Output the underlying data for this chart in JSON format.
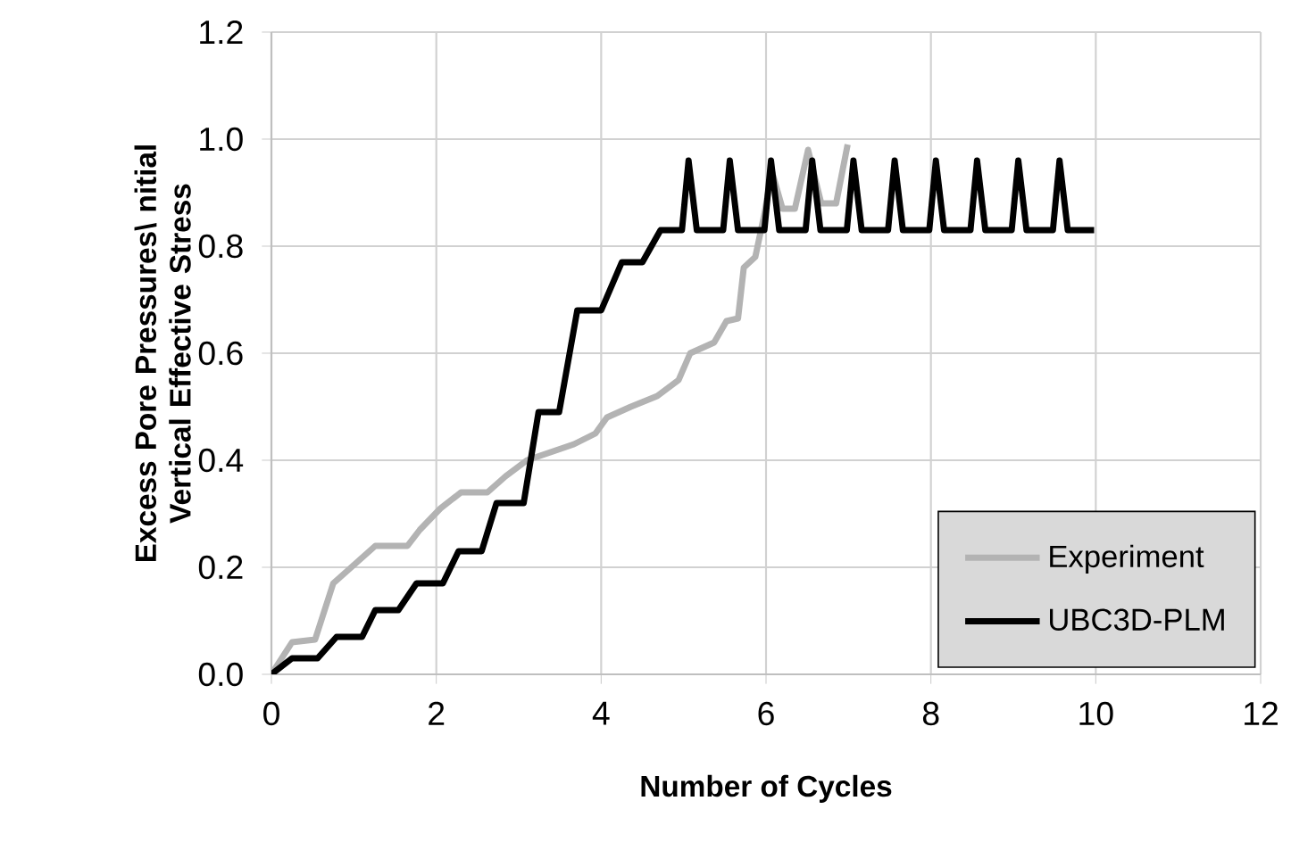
{
  "chart_data": {
    "type": "line",
    "xlabel": "Number of Cycles",
    "ylabel": "Excess Pore Pressures\\ nitial Vertical Effective Stress",
    "xlim": [
      0,
      12
    ],
    "ylim": [
      0,
      1.2
    ],
    "xticks": [
      0,
      2,
      4,
      6,
      8,
      10,
      12
    ],
    "yticks": [
      {
        "value": 0,
        "label": "0.0"
      },
      {
        "value": 0.2,
        "label": "0.2"
      },
      {
        "value": 0.4,
        "label": "0.4"
      },
      {
        "value": 0.6,
        "label": "0.6"
      },
      {
        "value": 0.8,
        "label": "0.8"
      },
      {
        "value": 1.0,
        "label": "1.0"
      },
      {
        "value": 1.2,
        "label": "1.2"
      }
    ],
    "grid": true,
    "legend": "bottom right",
    "marker": "none",
    "line_style": "solid",
    "series": [
      {
        "name": "Experiment",
        "color": "#b3b3b3",
        "x": [
          0,
          0.25,
          0.53,
          0.75,
          1.26,
          1.65,
          1.8,
          2.05,
          2.3,
          2.62,
          2.84,
          3.1,
          3.67,
          3.93,
          4.07,
          4.36,
          4.68,
          4.94,
          5.08,
          5.37,
          5.52,
          5.66,
          5.73,
          5.87,
          5.98,
          6.07,
          6.2,
          6.35,
          6.51,
          6.67,
          6.85,
          6.99
        ],
        "values": [
          0,
          0.06,
          0.065,
          0.17,
          0.24,
          0.24,
          0.27,
          0.31,
          0.34,
          0.34,
          0.37,
          0.4,
          0.43,
          0.45,
          0.48,
          0.5,
          0.52,
          0.55,
          0.6,
          0.62,
          0.66,
          0.665,
          0.76,
          0.78,
          0.86,
          0.94,
          0.87,
          0.87,
          0.98,
          0.88,
          0.88,
          0.99
        ]
      },
      {
        "name": "UBC3D-PLM",
        "color": "#000000",
        "x": [
          0,
          0.25,
          0.56,
          0.79,
          1.1,
          1.26,
          1.54,
          1.76,
          2.08,
          2.27,
          2.55,
          2.73,
          3.06,
          3.24,
          3.49,
          3.71,
          4.0,
          4.25,
          4.5,
          4.72,
          4.98,
          5.06,
          5.16,
          5.48,
          5.56,
          5.66,
          5.98,
          6.06,
          6.16,
          6.48,
          6.56,
          6.66,
          6.98,
          7.06,
          7.16,
          7.48,
          7.56,
          7.66,
          7.98,
          8.06,
          8.16,
          8.48,
          8.56,
          8.66,
          8.98,
          9.06,
          9.16,
          9.48,
          9.56,
          9.66,
          9.98
        ],
        "values": [
          0,
          0.03,
          0.03,
          0.07,
          0.07,
          0.12,
          0.12,
          0.17,
          0.17,
          0.23,
          0.23,
          0.32,
          0.32,
          0.49,
          0.49,
          0.68,
          0.68,
          0.77,
          0.77,
          0.83,
          0.83,
          0.96,
          0.83,
          0.83,
          0.96,
          0.83,
          0.83,
          0.96,
          0.83,
          0.83,
          0.96,
          0.83,
          0.83,
          0.96,
          0.83,
          0.83,
          0.96,
          0.83,
          0.83,
          0.96,
          0.83,
          0.83,
          0.96,
          0.83,
          0.83,
          0.96,
          0.83,
          0.83,
          0.96,
          0.83,
          0.83
        ]
      }
    ]
  }
}
